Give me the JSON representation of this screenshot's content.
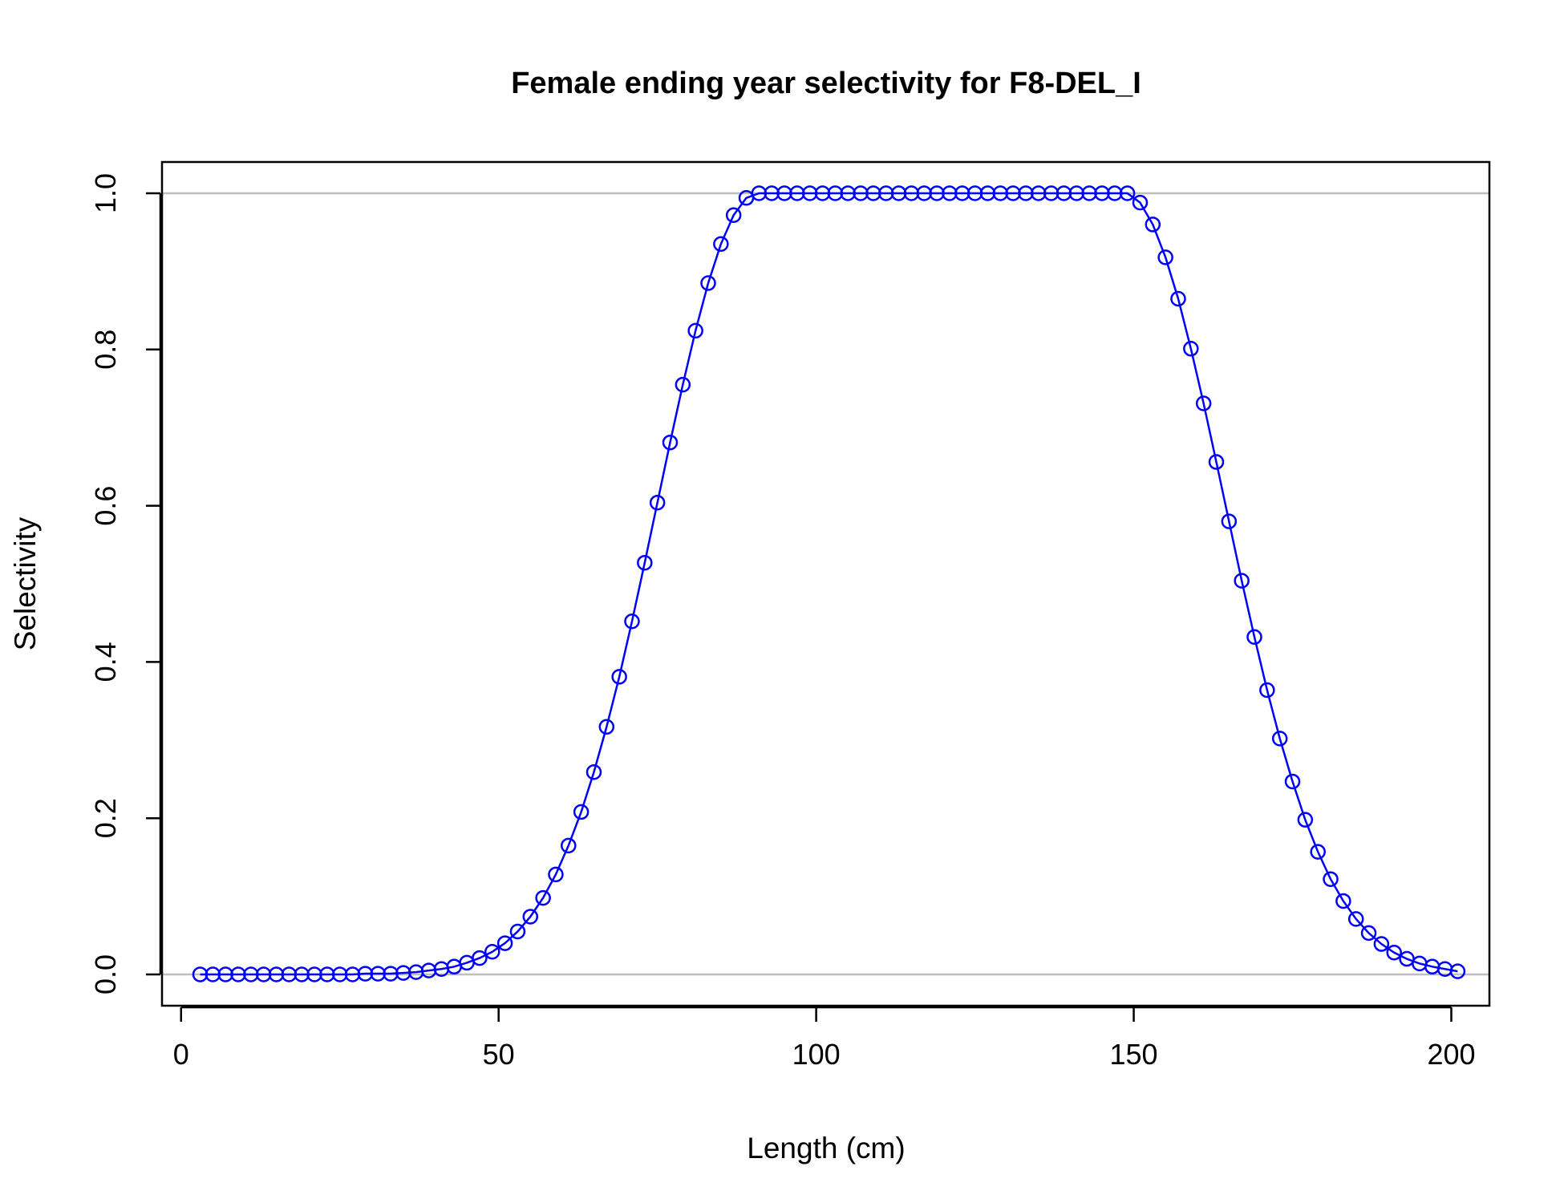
{
  "chart_data": {
    "type": "line",
    "title": "Female ending year selectivity for F8-DEL_I",
    "xlabel": "Length (cm)",
    "ylabel": "Selectivity",
    "xlim": [
      -3,
      206
    ],
    "ylim": [
      -0.04,
      1.04
    ],
    "x_ticks": [
      {
        "value": 0,
        "label": "0"
      },
      {
        "value": 50,
        "label": "50"
      },
      {
        "value": 100,
        "label": "100"
      },
      {
        "value": 150,
        "label": "150"
      },
      {
        "value": 200,
        "label": "200"
      }
    ],
    "y_ticks": [
      {
        "value": 0.0,
        "label": "0.0"
      },
      {
        "value": 0.2,
        "label": "0.2"
      },
      {
        "value": 0.4,
        "label": "0.4"
      },
      {
        "value": 0.6,
        "label": "0.6"
      },
      {
        "value": 0.8,
        "label": "0.8"
      },
      {
        "value": 1.0,
        "label": "1.0"
      }
    ],
    "reference_lines_y": [
      0,
      1
    ],
    "colors": {
      "series": "#0000ff",
      "reference": "#bebebe",
      "frame": "#000000"
    },
    "series": [
      {
        "marker": "open-circle",
        "line": true,
        "x": [
          3,
          5,
          7,
          9,
          11,
          13,
          15,
          17,
          19,
          21,
          23,
          25,
          27,
          29,
          31,
          33,
          35,
          37,
          39,
          41,
          43,
          45,
          47,
          49,
          51,
          53,
          55,
          57,
          59,
          61,
          63,
          65,
          67,
          69,
          71,
          73,
          75,
          77,
          79,
          81,
          83,
          85,
          87,
          89,
          91,
          93,
          95,
          97,
          99,
          101,
          103,
          105,
          107,
          109,
          111,
          113,
          115,
          117,
          119,
          121,
          123,
          125,
          127,
          129,
          131,
          133,
          135,
          137,
          139,
          141,
          143,
          145,
          147,
          149,
          151,
          153,
          155,
          157,
          159,
          161,
          163,
          165,
          167,
          169,
          171,
          173,
          175,
          177,
          179,
          181,
          183,
          185,
          187,
          189,
          191,
          193,
          195,
          197,
          199,
          201
        ],
        "y": [
          0.0,
          0.0,
          0.0,
          0.0,
          0.0,
          0.0,
          0.0,
          0.0,
          0.0,
          0.0,
          0.0,
          0.0,
          0.0,
          0.001,
          0.001,
          0.001,
          0.002,
          0.003,
          0.005,
          0.007,
          0.01,
          0.015,
          0.021,
          0.029,
          0.04,
          0.055,
          0.074,
          0.098,
          0.128,
          0.165,
          0.208,
          0.259,
          0.317,
          0.381,
          0.452,
          0.527,
          0.604,
          0.681,
          0.755,
          0.824,
          0.885,
          0.935,
          0.972,
          0.994,
          1.0,
          1.0,
          1.0,
          1.0,
          1.0,
          1.0,
          1.0,
          1.0,
          1.0,
          1.0,
          1.0,
          1.0,
          1.0,
          1.0,
          1.0,
          1.0,
          1.0,
          1.0,
          1.0,
          1.0,
          1.0,
          1.0,
          1.0,
          1.0,
          1.0,
          1.0,
          1.0,
          1.0,
          1.0,
          1.0,
          0.988,
          0.96,
          0.918,
          0.865,
          0.801,
          0.731,
          0.656,
          0.58,
          0.504,
          0.432,
          0.364,
          0.302,
          0.247,
          0.198,
          0.157,
          0.122,
          0.094,
          0.071,
          0.053,
          0.039,
          0.028,
          0.02,
          0.014,
          0.01,
          0.007,
          0.004
        ]
      }
    ]
  }
}
